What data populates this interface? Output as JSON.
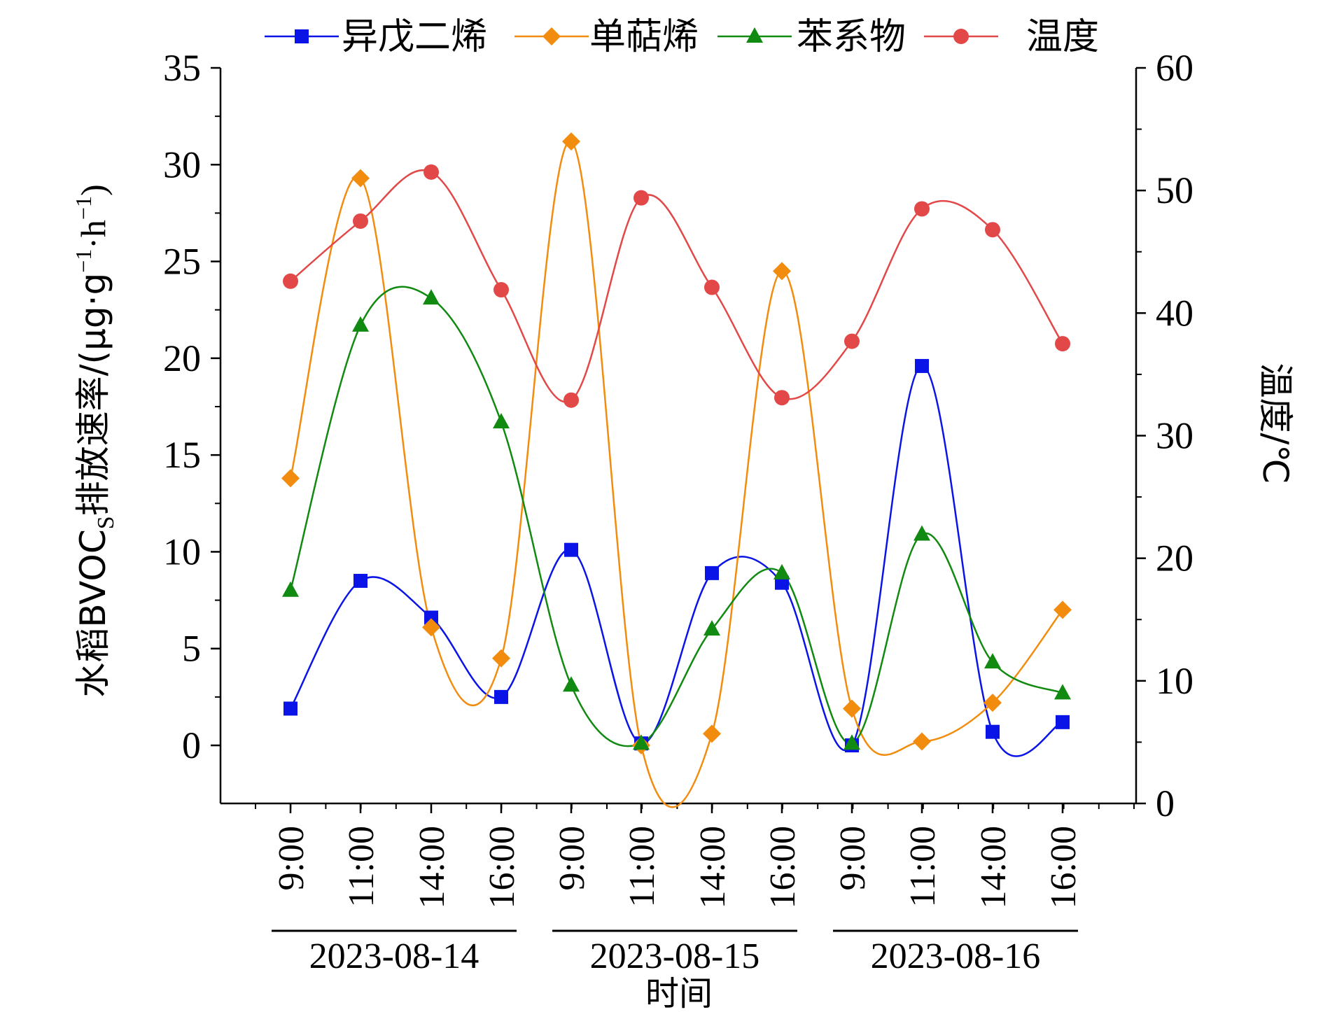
{
  "chart_data": {
    "type": "line",
    "title": "",
    "xlabel": "时间",
    "ylabel_left": "水稻BVOC",
    "ylabel_left_sub": "S",
    "ylabel_left_tail": "排放速率/(μg·g",
    "ylabel_left_sup1": "−1",
    "ylabel_left_mid": "·h",
    "ylabel_left_sup2": "−1",
    "ylabel_left_end": ")",
    "ylabel_right": "温度/℃",
    "ylim_left": [
      -3,
      35
    ],
    "ylim_right": [
      0,
      60
    ],
    "yticks_left": [
      "0",
      "5",
      "10",
      "15",
      "20",
      "25",
      "30",
      "35"
    ],
    "yticks_right": [
      "0",
      "10",
      "20",
      "30",
      "40",
      "50",
      "60"
    ],
    "categories": [
      "9:00",
      "11:00",
      "14:00",
      "16:00",
      "9:00",
      "11:00",
      "14:00",
      "16:00",
      "9:00",
      "11:00",
      "14:00",
      "16:00"
    ],
    "date_groups": [
      {
        "label": "2023-08-14",
        "start": 0,
        "end": 3
      },
      {
        "label": "2023-08-15",
        "start": 4,
        "end": 7
      },
      {
        "label": "2023-08-16",
        "start": 8,
        "end": 11
      }
    ],
    "legend_position": "top",
    "grid": false,
    "series": [
      {
        "name": "异戊二烯",
        "axis": "left",
        "marker": "square",
        "color": "#0a14e6",
        "values": [
          1.9,
          8.5,
          6.6,
          2.5,
          10.1,
          0.1,
          8.9,
          8.4,
          0.0,
          19.6,
          0.7,
          1.2
        ]
      },
      {
        "name": "单萜烯",
        "axis": "left",
        "marker": "diamond",
        "color": "#f28c0f",
        "values": [
          13.8,
          29.3,
          6.1,
          4.5,
          31.2,
          0.0,
          0.6,
          24.5,
          1.9,
          0.2,
          2.2,
          7.0
        ]
      },
      {
        "name": "苯系物",
        "axis": "left",
        "marker": "triangle",
        "color": "#118a11",
        "values": [
          8.0,
          21.7,
          23.1,
          16.7,
          3.1,
          0.1,
          6.0,
          8.9,
          0.1,
          10.9,
          4.3,
          2.7
        ]
      },
      {
        "name": "温度",
        "axis": "right",
        "marker": "circle",
        "color": "#e34848",
        "values": [
          42.6,
          47.5,
          51.5,
          41.9,
          32.9,
          49.4,
          42.1,
          33.1,
          37.7,
          48.5,
          46.8,
          37.5
        ]
      }
    ]
  }
}
